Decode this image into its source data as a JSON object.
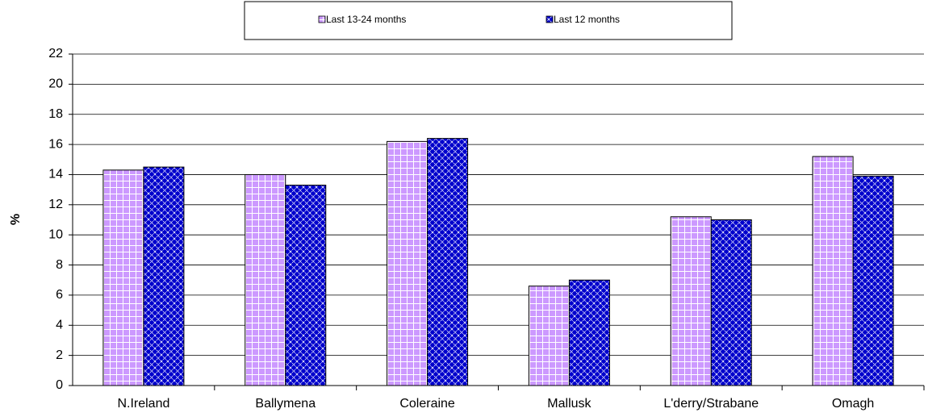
{
  "chart_data": {
    "type": "bar",
    "y_label": "%",
    "categories": [
      "N.Ireland",
      "Ballymena",
      "Coleraine",
      "Mallusk",
      "L'derry/Strabane",
      "Omagh"
    ],
    "series": [
      {
        "name": "Last 13-24 months",
        "color": "#cc99ff",
        "values": [
          14.3,
          14.0,
          16.2,
          6.6,
          11.2,
          15.2
        ]
      },
      {
        "name": "Last 12 months",
        "color": "#0000cc",
        "values": [
          14.5,
          13.3,
          16.4,
          7.0,
          11.0,
          13.9
        ]
      }
    ],
    "ylim": [
      0,
      22
    ],
    "yticks": [
      0,
      2,
      4,
      6,
      8,
      10,
      12,
      14,
      16,
      18,
      20,
      22
    ],
    "grid": true,
    "legend": "top"
  }
}
